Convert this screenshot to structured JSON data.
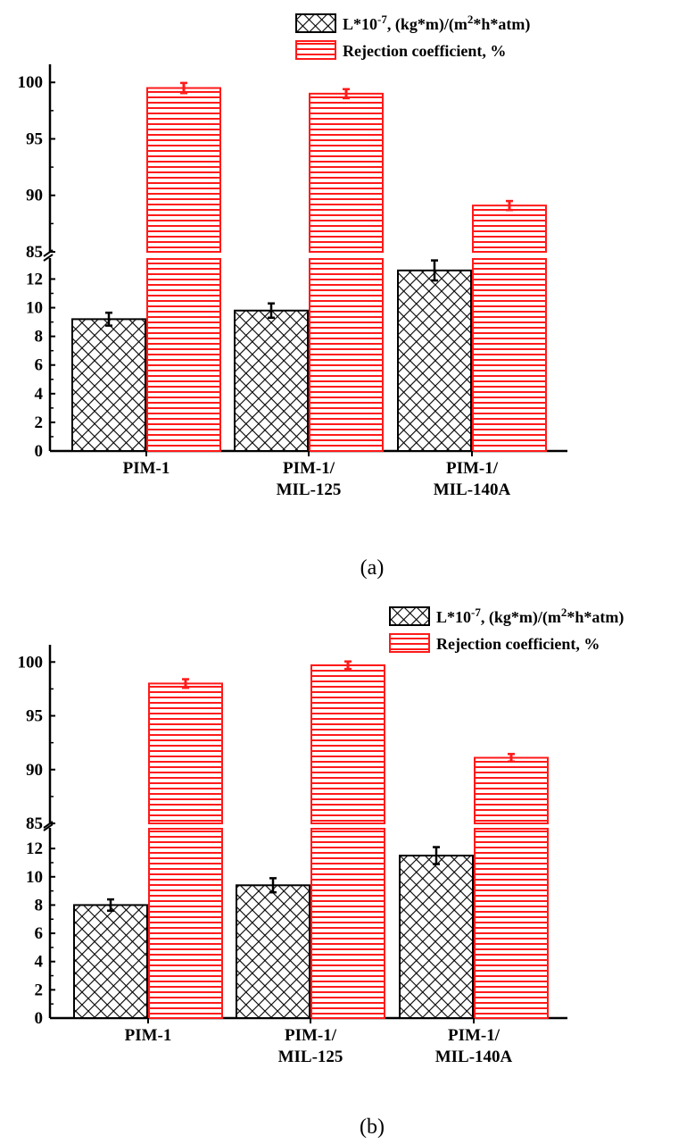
{
  "figure": {
    "captions": [
      "(a)",
      "(b)"
    ]
  },
  "colors": {
    "permeance": "#000000",
    "rejection": "#ff1a1a",
    "axis": "#000000"
  },
  "chart_data": [
    {
      "type": "bar",
      "panel": "(a)",
      "categories": [
        [
          "PIM-1"
        ],
        [
          "PIM-1/",
          "MIL-125"
        ],
        [
          "PIM-1/",
          "MIL-140A"
        ]
      ],
      "axis_break": {
        "lower_range": [
          0,
          13
        ],
        "upper_range": [
          85,
          102
        ]
      },
      "y_ticks_lower": [
        0,
        2,
        4,
        6,
        8,
        10,
        12
      ],
      "y_ticks_upper": [
        85,
        90,
        95,
        100
      ],
      "series": [
        {
          "name": "L*10",
          "name_sup": "-7",
          "name_rest": ", (kg*m)/(m",
          "name_sup2": "2",
          "name_end": "*h*atm)",
          "pattern": "crosshatch",
          "values": [
            9.2,
            9.8,
            12.6
          ],
          "errors": [
            0.45,
            0.5,
            0.7
          ]
        },
        {
          "name": "Rejection coefficient, %",
          "pattern": "horizontal-lines",
          "values": [
            99.5,
            99.0,
            89.1
          ],
          "errors": [
            0.45,
            0.4,
            0.4
          ]
        }
      ],
      "legend": "top-right",
      "xlabel": "",
      "ylabel": ""
    },
    {
      "type": "bar",
      "panel": "(b)",
      "categories": [
        [
          "PIM-1"
        ],
        [
          "PIM-1/",
          "MIL-125"
        ],
        [
          "PIM-1/",
          "MIL-140A"
        ]
      ],
      "axis_break": {
        "lower_range": [
          0,
          13
        ],
        "upper_range": [
          85,
          102
        ]
      },
      "y_ticks_lower": [
        0,
        2,
        4,
        6,
        8,
        10,
        12
      ],
      "y_ticks_upper": [
        85,
        90,
        95,
        100
      ],
      "series": [
        {
          "name": "L*10",
          "name_sup": "-7",
          "name_rest": ", (kg*m)/(m",
          "name_sup2": "2",
          "name_end": "*h*atm)",
          "pattern": "crosshatch",
          "values": [
            8.0,
            9.4,
            11.5
          ],
          "errors": [
            0.4,
            0.5,
            0.6
          ]
        },
        {
          "name": "Rejection coefficient, %",
          "pattern": "horizontal-lines",
          "values": [
            98.0,
            99.7,
            91.1
          ],
          "errors": [
            0.4,
            0.35,
            0.35
          ]
        }
      ],
      "legend": "top-right",
      "xlabel": "",
      "ylabel": ""
    }
  ]
}
